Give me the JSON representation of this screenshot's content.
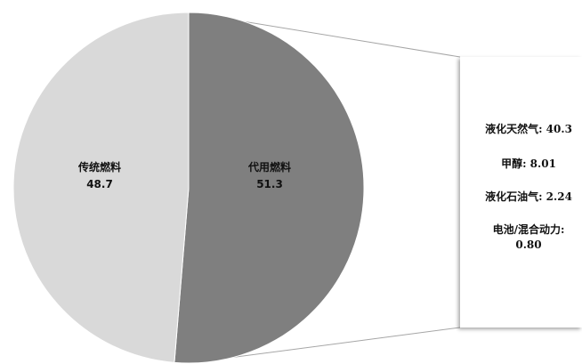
{
  "chart_data": {
    "type": "pie",
    "slices": [
      {
        "name": "传统燃料",
        "value": 48.7,
        "value_label": "48.7",
        "color": "#d9d9d9"
      },
      {
        "name": "代用燃料",
        "value": 51.3,
        "value_label": "51.3",
        "color": "#7f7f7f"
      }
    ],
    "breakout": {
      "parent_slice": "代用燃料",
      "items": [
        {
          "name": "液化天然气",
          "value": 40.3,
          "text": "液化天然气: 40.3"
        },
        {
          "name": "甲醇",
          "value": 8.01,
          "text": "甲醇: 8.01"
        },
        {
          "name": "液化石油气",
          "value": 2.24,
          "text": "液化石油气: 2.24"
        },
        {
          "name": "电池/混合动力",
          "value": 0.8,
          "text_line1": "电池/混合动力:",
          "text_line2": "0.80"
        }
      ]
    }
  }
}
